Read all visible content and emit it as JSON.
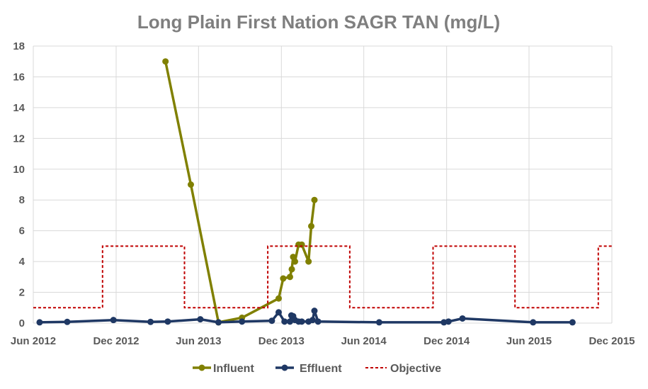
{
  "chart_data": {
    "type": "line",
    "title": "Long Plain First Nation SAGR TAN (mg/L)",
    "xlabel": "",
    "ylabel": "",
    "xlim": [
      "2012-06-01",
      "2015-12-01"
    ],
    "ylim": [
      0,
      18
    ],
    "x_ticks": [
      {
        "date": "2012-06-01",
        "label": "Jun 2012"
      },
      {
        "date": "2012-12-01",
        "label": "Dec 2012"
      },
      {
        "date": "2013-06-01",
        "label": "Jun 2013"
      },
      {
        "date": "2013-12-01",
        "label": "Dec 2013"
      },
      {
        "date": "2014-06-01",
        "label": "Jun 2014"
      },
      {
        "date": "2014-12-01",
        "label": "Dec 2014"
      },
      {
        "date": "2015-06-01",
        "label": "Jun 2015"
      },
      {
        "date": "2015-12-01",
        "label": "Dec 2015"
      }
    ],
    "y_ticks": [
      0,
      2,
      4,
      6,
      8,
      10,
      12,
      14,
      16,
      18
    ],
    "grid": true,
    "legend_position": "bottom",
    "series": [
      {
        "name": "Influent",
        "color": "#808000",
        "style": "line-marker",
        "points": [
          {
            "x": "2013-03-20",
            "y": 17.0
          },
          {
            "x": "2013-05-15",
            "y": 9.0
          },
          {
            "x": "2013-07-15",
            "y": 0.05
          },
          {
            "x": "2013-09-05",
            "y": 0.35
          },
          {
            "x": "2013-11-25",
            "y": 1.6
          },
          {
            "x": "2013-12-05",
            "y": 2.9
          },
          {
            "x": "2013-12-20",
            "y": 3.0
          },
          {
            "x": "2013-12-24",
            "y": 3.5
          },
          {
            "x": "2013-12-27",
            "y": 4.3
          },
          {
            "x": "2013-12-31",
            "y": 4.0
          },
          {
            "x": "2014-01-08",
            "y": 5.1
          },
          {
            "x": "2014-01-15",
            "y": 5.1
          },
          {
            "x": "2014-01-30",
            "y": 4.0
          },
          {
            "x": "2014-02-05",
            "y": 6.3
          },
          {
            "x": "2014-02-12",
            "y": 8.0
          }
        ]
      },
      {
        "name": "Effluent",
        "color": "#1f3864",
        "style": "line-marker",
        "points": [
          {
            "x": "2012-06-15",
            "y": 0.05
          },
          {
            "x": "2012-08-15",
            "y": 0.08
          },
          {
            "x": "2012-11-25",
            "y": 0.2
          },
          {
            "x": "2013-02-15",
            "y": 0.08
          },
          {
            "x": "2013-03-25",
            "y": 0.1
          },
          {
            "x": "2013-06-05",
            "y": 0.25
          },
          {
            "x": "2013-07-15",
            "y": 0.05
          },
          {
            "x": "2013-09-05",
            "y": 0.1
          },
          {
            "x": "2013-11-10",
            "y": 0.15
          },
          {
            "x": "2013-11-25",
            "y": 0.7
          },
          {
            "x": "2013-12-08",
            "y": 0.1
          },
          {
            "x": "2013-12-20",
            "y": 0.1
          },
          {
            "x": "2013-12-23",
            "y": 0.5
          },
          {
            "x": "2013-12-27",
            "y": 0.45
          },
          {
            "x": "2013-12-31",
            "y": 0.2
          },
          {
            "x": "2014-01-08",
            "y": 0.1
          },
          {
            "x": "2014-01-15",
            "y": 0.1
          },
          {
            "x": "2014-01-30",
            "y": 0.1
          },
          {
            "x": "2014-02-08",
            "y": 0.2
          },
          {
            "x": "2014-02-12",
            "y": 0.8
          },
          {
            "x": "2014-02-20",
            "y": 0.1
          },
          {
            "x": "2014-07-05",
            "y": 0.05
          },
          {
            "x": "2014-11-25",
            "y": 0.05
          },
          {
            "x": "2014-12-05",
            "y": 0.1
          },
          {
            "x": "2015-01-05",
            "y": 0.3
          },
          {
            "x": "2015-06-10",
            "y": 0.05
          },
          {
            "x": "2015-09-05",
            "y": 0.05
          }
        ]
      },
      {
        "name": "Objective",
        "color": "#c00000",
        "style": "dashed-step",
        "points": [
          {
            "x": "2012-06-01",
            "y": 1
          },
          {
            "x": "2012-11-01",
            "y": 1
          },
          {
            "x": "2012-11-01",
            "y": 5
          },
          {
            "x": "2013-05-01",
            "y": 5
          },
          {
            "x": "2013-05-01",
            "y": 1
          },
          {
            "x": "2013-11-01",
            "y": 1
          },
          {
            "x": "2013-11-01",
            "y": 5
          },
          {
            "x": "2014-05-01",
            "y": 5
          },
          {
            "x": "2014-05-01",
            "y": 1
          },
          {
            "x": "2014-11-01",
            "y": 1
          },
          {
            "x": "2014-11-01",
            "y": 5
          },
          {
            "x": "2015-05-01",
            "y": 5
          },
          {
            "x": "2015-05-01",
            "y": 1
          },
          {
            "x": "2015-11-01",
            "y": 1
          },
          {
            "x": "2015-11-01",
            "y": 5
          },
          {
            "x": "2015-12-01",
            "y": 5
          }
        ]
      }
    ]
  }
}
